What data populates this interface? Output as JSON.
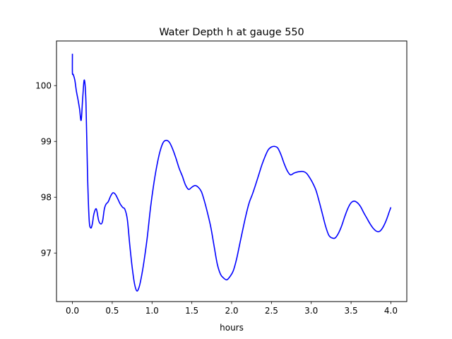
{
  "chart_data": {
    "type": "line",
    "title": "Water Depth h at gauge 550",
    "xlabel": "hours",
    "ylabel": "",
    "xlim": [
      -0.2,
      4.2
    ],
    "ylim": [
      96.13,
      100.8
    ],
    "xticks": [
      0.0,
      0.5,
      1.0,
      1.5,
      2.0,
      2.5,
      3.0,
      3.5,
      4.0
    ],
    "xtick_labels": [
      "0.0",
      "0.5",
      "1.0",
      "1.5",
      "2.0",
      "2.5",
      "3.0",
      "3.5",
      "4.0"
    ],
    "yticks": [
      97,
      98,
      99,
      100
    ],
    "ytick_labels": [
      "97",
      "98",
      "99",
      "100"
    ],
    "grid": false,
    "line_color": "#0000ff",
    "series": [
      {
        "x": [
          0.0,
          0.0,
          0.01,
          0.03,
          0.05,
          0.07,
          0.09,
          0.11,
          0.13,
          0.15,
          0.17,
          0.19,
          0.21,
          0.23,
          0.25,
          0.27,
          0.3,
          0.33,
          0.36,
          0.38,
          0.4,
          0.42,
          0.45,
          0.48,
          0.51,
          0.54,
          0.57,
          0.6,
          0.63,
          0.66,
          0.69,
          0.72,
          0.75,
          0.78,
          0.81,
          0.84,
          0.87,
          0.9,
          0.94,
          0.98,
          1.02,
          1.06,
          1.1,
          1.14,
          1.18,
          1.22,
          1.26,
          1.3,
          1.34,
          1.38,
          1.42,
          1.46,
          1.5,
          1.54,
          1.58,
          1.62,
          1.66,
          1.7,
          1.74,
          1.78,
          1.82,
          1.86,
          1.9,
          1.94,
          1.98,
          2.02,
          2.06,
          2.1,
          2.14,
          2.18,
          2.22,
          2.26,
          2.3,
          2.34,
          2.38,
          2.42,
          2.46,
          2.5,
          2.54,
          2.58,
          2.62,
          2.66,
          2.7,
          2.74,
          2.78,
          2.82,
          2.86,
          2.9,
          2.94,
          2.98,
          3.02,
          3.06,
          3.1,
          3.14,
          3.18,
          3.22,
          3.26,
          3.3,
          3.34,
          3.38,
          3.42,
          3.46,
          3.5,
          3.54,
          3.58,
          3.62,
          3.66,
          3.7,
          3.74,
          3.78,
          3.82,
          3.86,
          3.9,
          3.94,
          3.98,
          4.0
        ],
        "y": [
          100.57,
          100.23,
          100.2,
          100.1,
          99.9,
          99.75,
          99.58,
          99.38,
          99.8,
          100.1,
          99.7,
          98.4,
          97.6,
          97.45,
          97.52,
          97.7,
          97.79,
          97.58,
          97.52,
          97.58,
          97.78,
          97.87,
          97.92,
          98.02,
          98.08,
          98.05,
          97.97,
          97.88,
          97.82,
          97.78,
          97.6,
          97.15,
          96.75,
          96.45,
          96.32,
          96.4,
          96.6,
          96.86,
          97.28,
          97.8,
          98.22,
          98.56,
          98.82,
          98.98,
          99.02,
          98.98,
          98.86,
          98.7,
          98.52,
          98.38,
          98.22,
          98.14,
          98.18,
          98.21,
          98.18,
          98.1,
          97.92,
          97.7,
          97.45,
          97.12,
          96.8,
          96.62,
          96.55,
          96.52,
          96.58,
          96.68,
          96.88,
          97.15,
          97.42,
          97.68,
          97.9,
          98.05,
          98.22,
          98.4,
          98.58,
          98.73,
          98.85,
          98.9,
          98.91,
          98.88,
          98.76,
          98.6,
          98.47,
          98.4,
          98.43,
          98.45,
          98.46,
          98.46,
          98.43,
          98.35,
          98.25,
          98.12,
          97.92,
          97.7,
          97.48,
          97.32,
          97.27,
          97.27,
          97.35,
          97.48,
          97.65,
          97.8,
          97.9,
          97.93,
          97.9,
          97.83,
          97.72,
          97.62,
          97.52,
          97.44,
          97.39,
          97.39,
          97.46,
          97.58,
          97.74,
          97.82
        ]
      }
    ]
  }
}
